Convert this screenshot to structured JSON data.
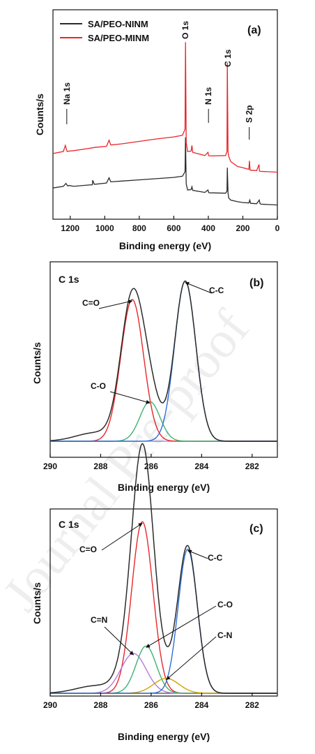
{
  "colors": {
    "black": "#2b2b2b",
    "red": "#e8262a",
    "blue": "#2f6fd6",
    "green": "#3cb371",
    "violet": "#b57ad9",
    "orange": "#d4a100",
    "baseline": "#9a7bd6",
    "axis": "#111111"
  },
  "watermark": "Journal Pre-proof",
  "chart_data": [
    {
      "id": "a",
      "type": "line",
      "panel_label": "(a)",
      "xlabel": "Binding energy (eV)",
      "ylabel": "Counts/s",
      "xlim": [
        1300,
        0
      ],
      "x_ticks": [
        1200,
        1000,
        800,
        600,
        400,
        200,
        0
      ],
      "x_tick_labels": [
        "1200",
        "1000",
        "800",
        "600",
        "400",
        "200",
        "0"
      ],
      "legend": {
        "position": "top-left",
        "entries": [
          {
            "name": "SA/PEO-NINM",
            "color": "#2b2b2b"
          },
          {
            "name": "SA/PEO-MINM",
            "color": "#e8262a"
          }
        ]
      },
      "series": [
        {
          "name": "SA/PEO-NINM",
          "color": "#2b2b2b",
          "x": [
            1300,
            1240,
            1225,
            1215,
            1205,
            1180,
            1100,
            1072,
            1070,
            1060,
            990,
            975,
            965,
            900,
            800,
            700,
            600,
            550,
            535,
            532,
            528,
            520,
            500,
            495,
            490,
            420,
            402,
            398,
            395,
            300,
            292,
            290,
            286,
            282,
            270,
            230,
            200,
            165,
            160,
            155,
            120,
            105,
            100,
            95,
            50,
            0
          ],
          "y": [
            60,
            64,
            71,
            65,
            66,
            64,
            67,
            68,
            79,
            69,
            72,
            85,
            75,
            77,
            80,
            83,
            86,
            89,
            100,
            185,
            70,
            55,
            56,
            63,
            54,
            49,
            55,
            49,
            48,
            47,
            52,
            110,
            48,
            35,
            30,
            26,
            24,
            23,
            30,
            22,
            21,
            30,
            21,
            20,
            19,
            18
          ]
        },
        {
          "name": "SA/PEO-MINM",
          "color": "#e8262a",
          "x": [
            1300,
            1240,
            1228,
            1218,
            1205,
            1180,
            1100,
            1072,
            1060,
            990,
            975,
            965,
            900,
            800,
            700,
            600,
            550,
            535,
            532,
            528,
            520,
            500,
            495,
            490,
            420,
            402,
            398,
            395,
            300,
            292,
            290,
            286,
            282,
            270,
            230,
            200,
            165,
            162,
            158,
            120,
            106,
            104,
            100,
            50,
            0
          ],
          "y": [
            145,
            150,
            165,
            150,
            151,
            152,
            157,
            159,
            160,
            163,
            178,
            166,
            169,
            175,
            181,
            186,
            190,
            205,
            420,
            172,
            150,
            151,
            165,
            148,
            140,
            148,
            140,
            139,
            140,
            150,
            370,
            150,
            138,
            125,
            113,
            110,
            106,
            127,
            104,
            103,
            118,
            102,
            101,
            100,
            99
          ]
        }
      ],
      "annotations": [
        {
          "text": "Na 1s",
          "x": 1220
        },
        {
          "text": "O 1s",
          "x": 532
        },
        {
          "text": "N 1s",
          "x": 399
        },
        {
          "text": "C 1s",
          "x": 286
        },
        {
          "text": "S 2p",
          "x": 163
        }
      ]
    },
    {
      "id": "b",
      "type": "line",
      "panel_label": "(b)",
      "title": "C 1s",
      "xlabel": "Binding energy (eV)",
      "ylabel": "Counts/s",
      "xlim": [
        290,
        281
      ],
      "x_ticks": [
        290,
        288,
        286,
        284,
        282
      ],
      "x_tick_labels": [
        "290",
        "288",
        "286",
        "284",
        "282"
      ],
      "peaks": [
        {
          "name": "C=O",
          "color": "#e8262a",
          "center": 286.75,
          "height": 100,
          "sigma": 0.45
        },
        {
          "name": "C-O",
          "color": "#3cb371",
          "center": 286.05,
          "height": 28,
          "sigma": 0.4
        },
        {
          "name": "C-C",
          "color": "#2f6fd6",
          "center": 284.65,
          "height": 113,
          "sigma": 0.42
        }
      ],
      "envelope_color": "#2b2b2b",
      "baseline_color": "#9a7bd6",
      "annotations": [
        {
          "text": "C=O",
          "target": 286.75
        },
        {
          "text": "C-O",
          "target": 286.05
        },
        {
          "text": "C-C",
          "target": 284.65
        }
      ]
    },
    {
      "id": "c",
      "type": "line",
      "panel_label": "(c)",
      "title": "C 1s",
      "xlabel": "Binding energy (eV)",
      "ylabel": "Counts/s",
      "xlim": [
        290,
        281
      ],
      "x_ticks": [
        290,
        288,
        286,
        284,
        282
      ],
      "x_tick_labels": [
        "290",
        "288",
        "286",
        "284",
        "282"
      ],
      "peaks": [
        {
          "name": "C=O",
          "color": "#e8262a",
          "center": 286.35,
          "height": 138,
          "sigma": 0.42
        },
        {
          "name": "C=N",
          "color": "#b57ad9",
          "center": 286.7,
          "height": 32,
          "sigma": 0.5
        },
        {
          "name": "C-O",
          "color": "#3cb371",
          "center": 286.2,
          "height": 38,
          "sigma": 0.4
        },
        {
          "name": "C-N",
          "color": "#d4a100",
          "center": 285.4,
          "height": 12,
          "sigma": 0.5
        },
        {
          "name": "C-C",
          "color": "#2f6fd6",
          "center": 284.55,
          "height": 116,
          "sigma": 0.38
        }
      ],
      "envelope_color": "#2b2b2b",
      "baseline_color": "#444444",
      "annotations": [
        {
          "text": "C=O",
          "target": 286.35
        },
        {
          "text": "C=N",
          "target": 286.7
        },
        {
          "text": "C-O",
          "target": 286.2
        },
        {
          "text": "C-N",
          "target": 285.4
        },
        {
          "text": "C-C",
          "target": 284.55
        }
      ]
    }
  ]
}
